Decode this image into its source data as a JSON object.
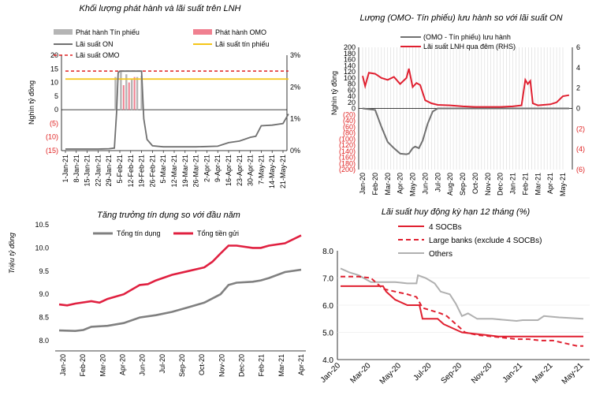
{
  "chart_data": [
    {
      "id": "c1",
      "type": "bar",
      "title": "Khối lượng phát hành và lãi suất trên LNH",
      "ylabel": "Nghìn tỷ đồng",
      "ylim": [
        -15,
        20
      ],
      "y2lim": [
        0,
        3
      ],
      "yticks": [
        "20",
        "15",
        "10",
        "5",
        "0",
        "(5)",
        "(10)",
        "(15)"
      ],
      "yticks_red": [
        false,
        false,
        false,
        false,
        false,
        true,
        true,
        true
      ],
      "y2ticks": [
        "3%",
        "2%",
        "1%",
        "0%"
      ],
      "categories": [
        "1-Jan-21",
        "8-Jan-21",
        "15-Jan-21",
        "22-Jan-21",
        "29-Jan-21",
        "5-Feb-21",
        "12-Feb-21",
        "19-Feb-21",
        "26-Feb-21",
        "5-Mar-21",
        "12-Mar-21",
        "19-Mar-21",
        "26-Mar-21",
        "2-Apr-21",
        "9-Apr-21",
        "16-Apr-21",
        "23-Apr-21",
        "30-Apr-21",
        "7-May-21",
        "14-May-21",
        "21-May-21"
      ],
      "legend": [
        "Phát hành Tín phiếu",
        "Phát hành OMO",
        "Lãi suất ON",
        "Lãi suất tín phiếu",
        "Lãi suất OMO"
      ],
      "colors": {
        "bill": "#b5b5b5",
        "omo": "#f08090",
        "on": "#707070",
        "billrate": "#f5c518",
        "omorate": "#e02020"
      },
      "series": [
        {
          "name": "Phát hành Tín phiếu",
          "values": [
            [
              4.6,
              12
            ],
            [
              5.1,
              14
            ],
            [
              5.6,
              13
            ],
            [
              6.1,
              11
            ],
            [
              6.6,
              12
            ],
            [
              7.0,
              12.5
            ]
          ]
        },
        {
          "name": "Phát hành OMO",
          "values": [
            [
              5.35,
              9
            ],
            [
              5.85,
              10
            ],
            [
              6.35,
              12
            ]
          ]
        },
        {
          "name": "Lãi suất ON",
          "values": [
            [
              0,
              0.05
            ],
            [
              1,
              0.05
            ],
            [
              2,
              0.05
            ],
            [
              3,
              0.05
            ],
            [
              4,
              0.06
            ],
            [
              4.5,
              0.08
            ],
            [
              4.7,
              1.2
            ],
            [
              4.85,
              2.45
            ],
            [
              5.0,
              2.5
            ],
            [
              5.5,
              2.5
            ],
            [
              6.0,
              2.5
            ],
            [
              6.5,
              2.5
            ],
            [
              7.0,
              2.5
            ],
            [
              7.2,
              1.0
            ],
            [
              7.5,
              0.35
            ],
            [
              8,
              0.15
            ],
            [
              9,
              0.12
            ],
            [
              10,
              0.12
            ],
            [
              11,
              0.12
            ],
            [
              12,
              0.12
            ],
            [
              13,
              0.13
            ],
            [
              14,
              0.14
            ],
            [
              15,
              0.25
            ],
            [
              16,
              0.3
            ],
            [
              17,
              0.42
            ],
            [
              17.5,
              0.45
            ],
            [
              18,
              0.78
            ],
            [
              19,
              0.8
            ],
            [
              20,
              0.85
            ],
            [
              20.5,
              1.15
            ]
          ]
        },
        {
          "name": "Lãi suất tín phiếu",
          "values": [
            [
              0,
              2.25
            ],
            [
              20.5,
              2.25
            ]
          ]
        },
        {
          "name": "Lãi suất OMO",
          "values": [
            [
              0,
              2.5
            ],
            [
              20.5,
              2.5
            ]
          ]
        }
      ]
    },
    {
      "id": "c2",
      "type": "line",
      "title": "Lượng (OMO- Tín phiếu) lưu hành so với lãi suất ON",
      "ylabel": "Nghìn tỷ đồng",
      "ylim": [
        -200,
        200
      ],
      "y2lim": [
        -6,
        6
      ],
      "yticks": [
        "200",
        "180",
        "160",
        "140",
        "120",
        "100",
        "80",
        "60",
        "40",
        "20",
        "0",
        "(20)",
        "(40)",
        "(60)",
        "(80)",
        "(100)",
        "(120)",
        "(140)",
        "(160)",
        "(180)",
        "(200)"
      ],
      "yticks_red": [
        false,
        false,
        false,
        false,
        false,
        false,
        false,
        false,
        false,
        false,
        false,
        true,
        true,
        true,
        true,
        true,
        true,
        true,
        true,
        true,
        true
      ],
      "y2ticks": [
        "6",
        "4",
        "2",
        "0",
        "(2)",
        "(4)",
        "(6)"
      ],
      "y2ticks_red": [
        false,
        false,
        false,
        false,
        true,
        true,
        true
      ],
      "categories": [
        "Jan-20",
        "Feb-20",
        "Mar-20",
        "Apr-20",
        "May-20",
        "Jun-20",
        "Jul-20",
        "Aug-20",
        "Sep-20",
        "Oct-20",
        "Nov-20",
        "Dec-20",
        "Jan-21",
        "Feb-21",
        "Mar-21",
        "Apr-21",
        "May-21"
      ],
      "xlabels": [
        "Jan-20",
        "Feb-20",
        "Mar-20",
        "Apr-20",
        "May-20",
        "Jun-20",
        "Jul-20",
        "Aug-20",
        "Sep-20",
        "Oct-20",
        "Nov-20",
        "Dec-20",
        "Jan-21",
        "Feb-21",
        "Mar-21",
        "Apr-21",
        "May-21"
      ],
      "legend": [
        "(OMO - Tín phiếu) lưu hành",
        "Lãi suất LNH qua đêm (RHS)"
      ],
      "series": [
        {
          "name": "(OMO - Tín phiếu) lưu hành",
          "values": [
            [
              0,
              0
            ],
            [
              1,
              -5
            ],
            [
              1.5,
              -60
            ],
            [
              2,
              -110
            ],
            [
              2.5,
              -130
            ],
            [
              3,
              -148
            ],
            [
              3.5,
              -150
            ],
            [
              3.7,
              -148
            ],
            [
              4,
              -130
            ],
            [
              4.2,
              -125
            ],
            [
              4.5,
              -130
            ],
            [
              4.8,
              -105
            ],
            [
              5.2,
              -50
            ],
            [
              5.6,
              -10
            ],
            [
              6,
              0
            ],
            [
              16.5,
              0
            ]
          ]
        },
        {
          "name": "Lãi suất LNH qua đêm (RHS)",
          "values": [
            [
              0,
              3.2
            ],
            [
              0.2,
              2.2
            ],
            [
              0.5,
              3.5
            ],
            [
              1,
              3.4
            ],
            [
              1.5,
              3.0
            ],
            [
              2,
              2.8
            ],
            [
              2.5,
              3.1
            ],
            [
              3,
              2.4
            ],
            [
              3.5,
              3.0
            ],
            [
              3.7,
              3.9
            ],
            [
              4,
              2.1
            ],
            [
              4.3,
              2.5
            ],
            [
              4.6,
              2.3
            ],
            [
              5,
              0.8
            ],
            [
              5.5,
              0.5
            ],
            [
              6,
              0.35
            ],
            [
              7,
              0.3
            ],
            [
              8,
              0.2
            ],
            [
              9,
              0.15
            ],
            [
              10,
              0.15
            ],
            [
              11,
              0.15
            ],
            [
              12,
              0.2
            ],
            [
              12.7,
              0.3
            ],
            [
              13,
              2.8
            ],
            [
              13.2,
              2.4
            ],
            [
              13.4,
              2.7
            ],
            [
              13.6,
              0.5
            ],
            [
              14,
              0.3
            ],
            [
              15,
              0.4
            ],
            [
              15.5,
              0.6
            ],
            [
              16,
              1.2
            ],
            [
              16.5,
              1.3
            ]
          ]
        }
      ]
    },
    {
      "id": "c3",
      "type": "line",
      "title": "Tăng trưởng tín dụng so với đầu năm",
      "ylabel": "Triệu tỷ đồng",
      "ylim": [
        8.0,
        10.5
      ],
      "yticks": [
        "10.5",
        "10.0",
        "9.5",
        "9.0",
        "8.5",
        "8.0"
      ],
      "categories": [
        "Jan-20",
        "Feb-20",
        "Mar-20",
        "Apr-20",
        "May-20",
        "Jun-20",
        "Jul-20",
        "Aug-20",
        "Sep-20",
        "Oct-20",
        "Nov-20",
        "Dec-20",
        "Jan-21",
        "Feb-21",
        "Mar-21",
        "Apr-21"
      ],
      "xlabels": [
        "Jan-20",
        "Feb-20",
        "Mar-20",
        "Apr-20",
        "Jun-20",
        "Jul-20",
        "Sep-20",
        "Oct-20",
        "Nov-20",
        "Dec-20",
        "Feb-21",
        "Mar-21",
        "Apr-21"
      ],
      "legend": [
        "Tổng tín dụng",
        "Tổng tiền gửi"
      ],
      "series": [
        {
          "name": "Tổng tín dụng",
          "values": [
            [
              0,
              8.22
            ],
            [
              1,
              8.21
            ],
            [
              1.5,
              8.23
            ],
            [
              2,
              8.3
            ],
            [
              3,
              8.32
            ],
            [
              4,
              8.38
            ],
            [
              5,
              8.5
            ],
            [
              6,
              8.55
            ],
            [
              7,
              8.62
            ],
            [
              8,
              8.72
            ],
            [
              9,
              8.82
            ],
            [
              10,
              9.0
            ],
            [
              10.5,
              9.2
            ],
            [
              11,
              9.25
            ],
            [
              12,
              9.27
            ],
            [
              12.5,
              9.3
            ],
            [
              13,
              9.35
            ],
            [
              14,
              9.48
            ],
            [
              15,
              9.53
            ]
          ]
        },
        {
          "name": "Tổng tiền gửi",
          "values": [
            [
              0,
              8.78
            ],
            [
              0.5,
              8.76
            ],
            [
              1,
              8.8
            ],
            [
              2,
              8.85
            ],
            [
              2.5,
              8.82
            ],
            [
              3,
              8.9
            ],
            [
              4,
              9.0
            ],
            [
              5,
              9.2
            ],
            [
              5.5,
              9.22
            ],
            [
              6,
              9.3
            ],
            [
              7,
              9.42
            ],
            [
              8,
              9.5
            ],
            [
              9,
              9.58
            ],
            [
              9.5,
              9.7
            ],
            [
              10,
              9.88
            ],
            [
              10.5,
              10.05
            ],
            [
              11,
              10.05
            ],
            [
              12,
              10.0
            ],
            [
              12.5,
              10.0
            ],
            [
              13,
              10.05
            ],
            [
              14,
              10.1
            ],
            [
              15,
              10.27
            ]
          ]
        }
      ]
    },
    {
      "id": "c4",
      "type": "line",
      "title": "Lãi suất huy động kỳ hạn 12 tháng (%)",
      "ylim": [
        4.0,
        8.0
      ],
      "yticks": [
        "8.0",
        "7.0",
        "6.0",
        "5.0",
        "4.0"
      ],
      "categories": [
        "Jan-20",
        "Mar-20",
        "May-20",
        "Jul-20",
        "Sep-20",
        "Nov-20",
        "Jan-21",
        "Mar-21",
        "May-21"
      ],
      "xlabels": [
        "Jan-20",
        "Mar-20",
        "May-20",
        "Jul-20",
        "Sep-20",
        "Nov-20",
        "Jan-21",
        "Mar-21",
        "May-21"
      ],
      "legend": [
        "4 SOCBs",
        "Large banks (exclude 4 SOCBs)",
        "Others"
      ],
      "series": [
        {
          "name": "4 SOCBs",
          "values": [
            [
              0,
              6.7
            ],
            [
              1.4,
              6.7
            ],
            [
              1.5,
              6.5
            ],
            [
              1.8,
              6.2
            ],
            [
              2.2,
              6.0
            ],
            [
              2.6,
              6.0
            ],
            [
              2.7,
              5.5
            ],
            [
              3.2,
              5.5
            ],
            [
              3.4,
              5.3
            ],
            [
              3.6,
              5.2
            ],
            [
              4.0,
              5.0
            ],
            [
              4.4,
              4.95
            ],
            [
              4.8,
              4.9
            ],
            [
              5.2,
              4.85
            ],
            [
              8.0,
              4.85
            ]
          ]
        },
        {
          "name": "Large banks (exclude 4 SOCBs)",
          "values": [
            [
              0,
              7.05
            ],
            [
              0.6,
              7.05
            ],
            [
              1.0,
              7.0
            ],
            [
              1.4,
              6.6
            ],
            [
              1.8,
              6.5
            ],
            [
              2.2,
              6.4
            ],
            [
              2.5,
              6.3
            ],
            [
              2.7,
              5.9
            ],
            [
              3.0,
              5.8
            ],
            [
              3.3,
              5.7
            ],
            [
              3.5,
              5.6
            ],
            [
              3.8,
              5.3
            ],
            [
              4.1,
              5.0
            ],
            [
              4.5,
              4.9
            ],
            [
              5,
              4.85
            ],
            [
              5.4,
              4.8
            ],
            [
              5.8,
              4.75
            ],
            [
              6.2,
              4.75
            ],
            [
              6.6,
              4.7
            ],
            [
              7.0,
              4.7
            ],
            [
              7.4,
              4.6
            ],
            [
              7.8,
              4.5
            ],
            [
              8.0,
              4.5
            ]
          ]
        },
        {
          "name": "Others",
          "values": [
            [
              0,
              7.35
            ],
            [
              0.3,
              7.2
            ],
            [
              0.6,
              7.1
            ],
            [
              1.0,
              6.85
            ],
            [
              1.8,
              6.85
            ],
            [
              2.2,
              6.8
            ],
            [
              2.5,
              6.8
            ],
            [
              2.55,
              7.1
            ],
            [
              2.8,
              7.0
            ],
            [
              3.1,
              6.8
            ],
            [
              3.3,
              6.5
            ],
            [
              3.6,
              6.4
            ],
            [
              3.8,
              6.05
            ],
            [
              4.0,
              5.6
            ],
            [
              4.2,
              5.7
            ],
            [
              4.5,
              5.5
            ],
            [
              5.0,
              5.5
            ],
            [
              5.5,
              5.45
            ],
            [
              5.8,
              5.42
            ],
            [
              6.0,
              5.45
            ],
            [
              6.5,
              5.45
            ],
            [
              6.7,
              5.6
            ],
            [
              7.2,
              5.55
            ],
            [
              8.0,
              5.5
            ]
          ]
        }
      ]
    }
  ]
}
